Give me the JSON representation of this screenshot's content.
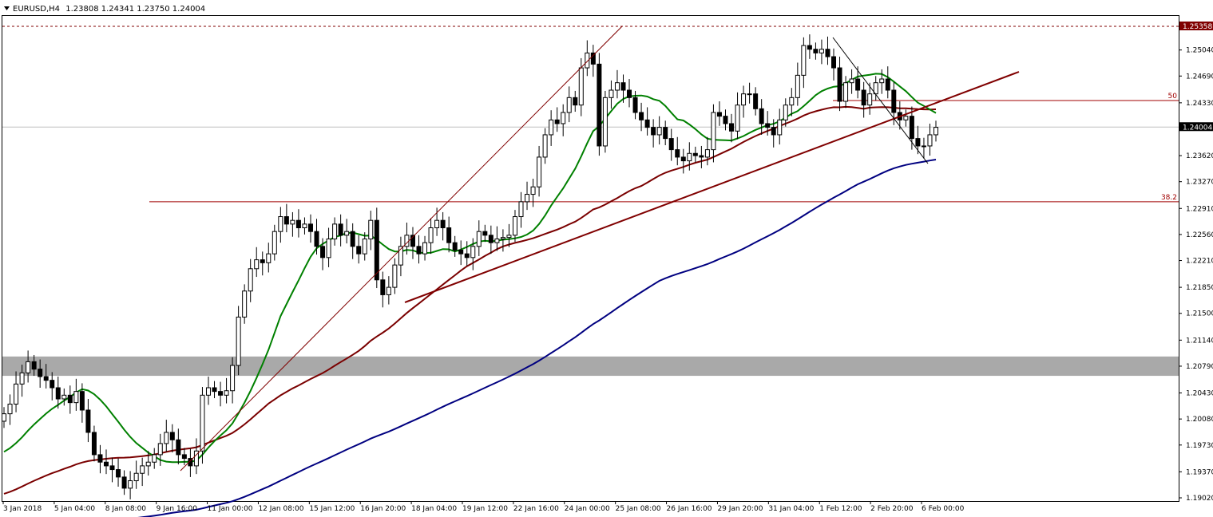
{
  "chart_data": {
    "type": "candlestick",
    "symbol": "EURUSD,H4",
    "ohlc_header": "1.23808 1.24341 1.23750 1.24004",
    "ylim": [
      1.1902,
      1.2602
    ],
    "y_ticks": [
      "1.25040",
      "1.24690",
      "1.24330",
      "1.23620",
      "1.23270",
      "1.22910",
      "1.22560",
      "1.22210",
      "1.21850",
      "1.21500",
      "1.21140",
      "1.20790",
      "1.20430",
      "1.20080",
      "1.19730",
      "1.19370",
      "1.19020"
    ],
    "current_price": "1.24004",
    "high_price_label": "1.25358",
    "x_ticks": [
      "3 Jan 2018",
      "5 Jan 04:00",
      "8 Jan 08:00",
      "9 Jan 16:00",
      "11 Jan 00:00",
      "12 Jan 08:00",
      "15 Jan 12:00",
      "16 Jan 20:00",
      "18 Jan 04:00",
      "19 Jan 12:00",
      "22 Jan 16:00",
      "24 Jan 00:00",
      "25 Jan 08:00",
      "26 Jan 16:00",
      "29 Jan 20:00",
      "31 Jan 04:00",
      "1 Feb 12:00",
      "2 Feb 20:00",
      "6 Feb 00:00"
    ],
    "fib_levels": [
      {
        "label": "50",
        "price": 1.2436
      },
      {
        "label": "38.2",
        "price": 1.23
      }
    ],
    "zone": {
      "from": 1.2066,
      "to": 1.2092
    },
    "closes": [
      1.2015,
      1.2028,
      1.2055,
      1.207,
      1.2085,
      1.2075,
      1.2065,
      1.206,
      1.205,
      1.2035,
      1.204,
      1.203,
      1.2045,
      1.202,
      1.199,
      1.196,
      1.195,
      1.1945,
      1.194,
      1.193,
      1.1915,
      1.1925,
      1.1935,
      1.1945,
      1.195,
      1.196,
      1.1975,
      1.199,
      1.198,
      1.196,
      1.1955,
      1.1945,
      1.1965,
      1.204,
      1.205,
      1.2045,
      1.204,
      1.2046,
      1.208,
      1.2145,
      1.218,
      1.221,
      1.2222,
      1.2218,
      1.223,
      1.226,
      1.228,
      1.227,
      1.2275,
      1.2265,
      1.227,
      1.226,
      1.224,
      1.2225,
      1.225,
      1.227,
      1.2255,
      1.226,
      1.224,
      1.223,
      1.225,
      1.2275,
      1.2195,
      1.2175,
      1.2185,
      1.2215,
      1.224,
      1.2255,
      1.224,
      1.223,
      1.2245,
      1.2265,
      1.2275,
      1.2265,
      1.2245,
      1.2235,
      1.223,
      1.2225,
      1.224,
      1.226,
      1.2255,
      1.2245,
      1.225,
      1.2252,
      1.2255,
      1.228,
      1.23,
      1.231,
      1.232,
      1.236,
      1.239,
      1.241,
      1.2405,
      1.242,
      1.244,
      1.243,
      1.248,
      1.25,
      1.2485,
      1.2375,
      1.244,
      1.245,
      1.246,
      1.245,
      1.244,
      1.242,
      1.241,
      1.24,
      1.239,
      1.24,
      1.2385,
      1.237,
      1.236,
      1.2355,
      1.2365,
      1.2362,
      1.236,
      1.237,
      1.242,
      1.2415,
      1.2405,
      1.2395,
      1.243,
      1.2445,
      1.2445,
      1.2425,
      1.2405,
      1.24,
      1.239,
      1.241,
      1.243,
      1.244,
      1.247,
      1.251,
      1.2505,
      1.25,
      1.2505,
      1.2495,
      1.248,
      1.2435,
      1.246,
      1.2465,
      1.245,
      1.243,
      1.2445,
      1.246,
      1.2465,
      1.245,
      1.242,
      1.241,
      1.2415,
      1.2385,
      1.2375,
      1.2375,
      1.239,
      1.24
    ]
  }
}
